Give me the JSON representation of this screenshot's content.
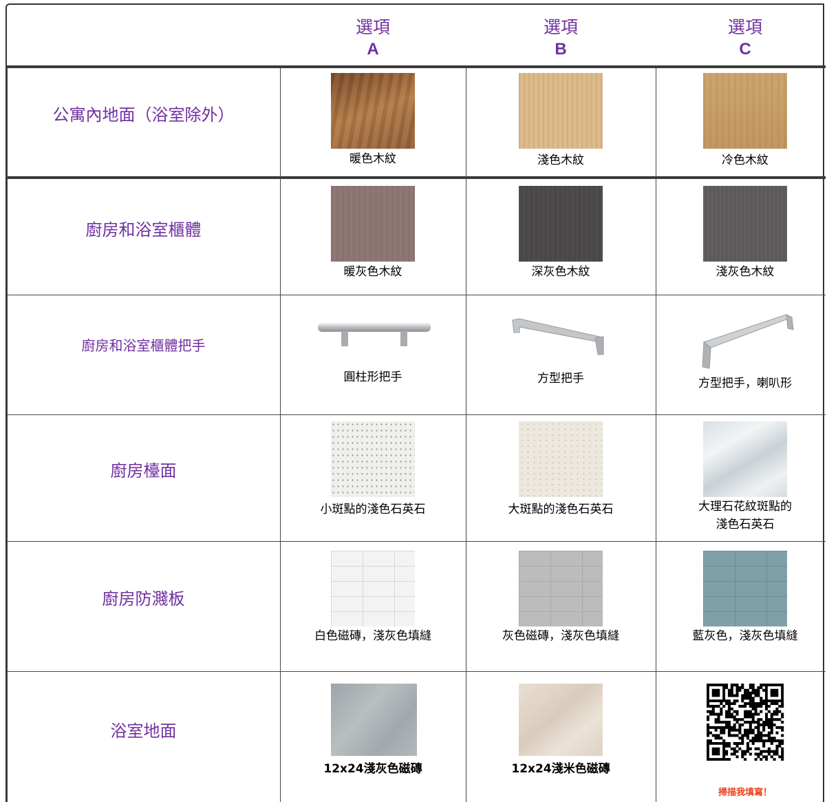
{
  "header": {
    "columns": [
      {
        "title": "選項",
        "letter": "A"
      },
      {
        "title": "選項",
        "letter": "B"
      },
      {
        "title": "選項",
        "letter": "C"
      }
    ]
  },
  "rows": [
    {
      "label": "公寓內地面（浴室除外）",
      "options": [
        "暖色木紋",
        "淺色木紋",
        "冷色木紋"
      ]
    },
    {
      "label": "廚房和浴室櫃體",
      "options": [
        "暖灰色木紋",
        "深灰色木紋",
        "淺灰色木紋"
      ]
    },
    {
      "label": "廚房和浴室櫃體把手",
      "options": [
        "圓柱形把手",
        "方型把手",
        "方型把手，喇叭形"
      ]
    },
    {
      "label": "廚房檯面",
      "options": [
        "小斑點的淺色石英石",
        "大斑點的淺色石英石",
        "大理石花紋斑點的淺色石英石"
      ]
    },
    {
      "label": "廚房防濺板",
      "options": [
        "白色磁磚，淺灰色填縫",
        "灰色磁磚，淺灰色填縫",
        "藍灰色，淺灰色填縫"
      ]
    },
    {
      "label": "浴室地面",
      "options": [
        "12x24淺灰色磁磚",
        "12x24淺米色磁磚"
      ]
    }
  ],
  "qr_caption": "掃描我填寫！"
}
